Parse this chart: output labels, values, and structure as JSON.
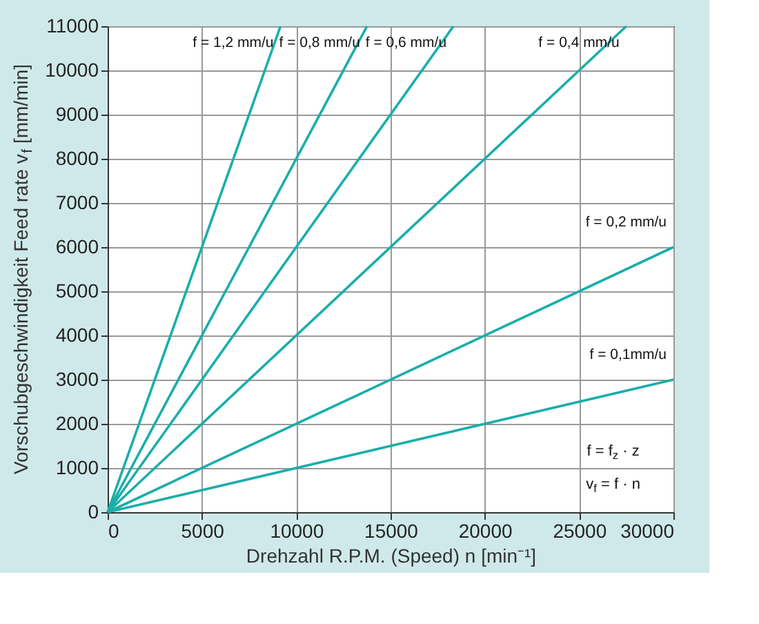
{
  "chart_data": {
    "type": "line",
    "xlabel": "Drehzahl R.P.M. (Speed) n [min⁻¹]",
    "ylabel": "Vorschubgeschwindigkeit Feed rate v$_{f}$ [mm/min]",
    "xlim": [
      0,
      30000
    ],
    "xticks": [
      0,
      5000,
      10000,
      15000,
      20000,
      25000,
      30000
    ],
    "ylim": [
      0,
      11000
    ],
    "yticks": [
      0,
      1000,
      2000,
      3000,
      4000,
      5000,
      6000,
      7000,
      8000,
      9000,
      10000,
      11000
    ],
    "grid": true,
    "marker": "none",
    "line_style": "solid",
    "series": [
      {
        "color": "#1aaeaa",
        "x": [
          0,
          9167
        ],
        "values": [
          0,
          11000
        ]
      },
      {
        "color": "#1aaeaa",
        "x": [
          0,
          13750
        ],
        "values": [
          0,
          11000
        ]
      },
      {
        "color": "#1aaeaa",
        "x": [
          0,
          18333
        ],
        "values": [
          0,
          11000
        ]
      },
      {
        "color": "#1aaeaa",
        "x": [
          0,
          27500
        ],
        "values": [
          0,
          11000
        ]
      },
      {
        "color": "#1aaeaa",
        "x": [
          0,
          30000
        ],
        "values": [
          0,
          6000
        ]
      },
      {
        "color": "#1aaeaa",
        "x": [
          0,
          30000
        ],
        "values": [
          0,
          3000
        ]
      }
    ],
    "annotations": [
      "f = 1,2 mm/u",
      "f = 0,8 mm/u",
      "f = 0,6 mm/u",
      "f = 0,4 mm/u",
      "f = 0,2 mm/u",
      "f = 0,1mm/u",
      "f = f$_{z}$ · z",
      "v$_{f}$ = f · n"
    ]
  }
}
